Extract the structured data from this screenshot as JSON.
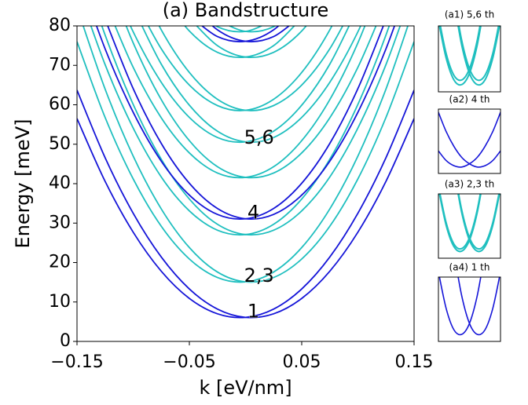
{
  "chart_data": [
    {
      "type": "line",
      "title": "(a) Bandstructure",
      "xlabel": "k [eV/nm]",
      "ylabel": "Energy [meV]",
      "x": [
        -0.15,
        -0.125,
        -0.1,
        -0.075,
        -0.05,
        -0.025,
        0,
        0.025,
        0.05,
        0.075,
        0.1,
        0.125,
        0.15
      ],
      "xlim": [
        -0.15,
        0.15
      ],
      "ylim": [
        0,
        80
      ],
      "xticks": [
        {
          "value": -0.15,
          "label": "−0.15"
        },
        {
          "value": -0.05,
          "label": "−0.05"
        },
        0.05,
        0.15
      ],
      "yticks": [
        0,
        10,
        20,
        30,
        40,
        50,
        60,
        70,
        80
      ],
      "series": [
        {
          "color": "#1515d8",
          "values": [
            63.7,
            46.6,
            32.5,
            21.4,
            13.3,
            8.2,
            6.1,
            7.0,
            10.9,
            17.8,
            27.7,
            40.6,
            56.5
          ]
        },
        {
          "color": "#1515d8",
          "values": [
            56.5,
            40.6,
            27.7,
            17.8,
            10.9,
            7.0,
            6.1,
            8.2,
            13.3,
            21.4,
            32.5,
            46.6,
            63.7
          ]
        },
        {
          "color": "#1fbfbf",
          "values": [
            84.7,
            64.0,
            47.0,
            33.6,
            23.8,
            17.6,
            15.1,
            16.2,
            20.9,
            29.2,
            41.2,
            56.8,
            76.0
          ]
        },
        {
          "color": "#1fbfbf",
          "values": [
            76.0,
            56.8,
            41.2,
            29.2,
            20.9,
            16.2,
            15.1,
            17.6,
            23.8,
            33.6,
            47.0,
            64.0,
            84.7
          ]
        },
        {
          "color": "#1fbfbf",
          "values": [
            99.1,
            77.7,
            60.1,
            46.2,
            36.1,
            29.7,
            27.1,
            28.2,
            33.1,
            41.7,
            54.1,
            70.2,
            90.1
          ]
        },
        {
          "color": "#1fbfbf",
          "values": [
            90.1,
            70.2,
            54.1,
            41.7,
            33.1,
            28.2,
            27.1,
            29.7,
            36.1,
            46.2,
            60.1,
            77.7,
            99.1
          ]
        },
        {
          "color": "#1515d8",
          "values": [
            null,
            81.7,
            64.1,
            50.2,
            40.1,
            33.7,
            31.1,
            32.2,
            37.1,
            45.7,
            58.1,
            74.2,
            94.1
          ]
        },
        {
          "color": "#1515d8",
          "values": [
            94.1,
            74.2,
            58.1,
            45.7,
            37.1,
            32.2,
            31.1,
            33.7,
            40.1,
            50.2,
            64.1,
            81.7,
            null
          ]
        },
        {
          "color": "#1fbfbf",
          "values": [
            null,
            93.9,
            75.7,
            61.3,
            50.9,
            44.3,
            41.6,
            42.7,
            47.8,
            56.7,
            69.5,
            86.1,
            null
          ]
        },
        {
          "color": "#1fbfbf",
          "values": [
            null,
            86.1,
            69.5,
            56.7,
            47.8,
            42.7,
            41.6,
            44.3,
            50.9,
            61.3,
            75.7,
            93.9,
            null
          ]
        },
        {
          "color": "#1fbfbf",
          "values": [
            null,
            null,
            84.7,
            70.3,
            59.9,
            53.3,
            50.6,
            51.7,
            56.8,
            65.7,
            78.5,
            95.1,
            null
          ]
        },
        {
          "color": "#1fbfbf",
          "values": [
            null,
            95.1,
            78.5,
            65.7,
            56.8,
            51.7,
            50.6,
            53.3,
            59.9,
            70.3,
            84.7,
            null,
            null
          ]
        },
        {
          "color": "#1fbfbf",
          "values": [
            null,
            null,
            93.8,
            79.0,
            68.2,
            61.4,
            58.6,
            59.8,
            65.0,
            74.2,
            87.4,
            null,
            null
          ]
        },
        {
          "color": "#1fbfbf",
          "values": [
            null,
            null,
            87.4,
            74.2,
            65.0,
            59.8,
            58.6,
            61.4,
            68.2,
            79.0,
            93.8,
            null,
            null
          ]
        },
        {
          "color": "#1fbfbf",
          "values": [
            null,
            null,
            null,
            null,
            82.0,
            75.0,
            72.1,
            73.3,
            78.7,
            88.2,
            null,
            null,
            null
          ]
        },
        {
          "color": "#1fbfbf",
          "values": [
            null,
            null,
            null,
            88.2,
            78.7,
            73.3,
            72.1,
            75.0,
            82.0,
            null,
            null,
            null,
            null
          ]
        },
        {
          "color": "#1515d8",
          "values": [
            null,
            null,
            null,
            null,
            86.0,
            79.0,
            76.1,
            77.3,
            82.7,
            null,
            null,
            null,
            null
          ]
        },
        {
          "color": "#1515d8",
          "values": [
            null,
            null,
            null,
            null,
            82.7,
            77.3,
            76.1,
            79.0,
            86.0,
            null,
            null,
            null,
            null
          ]
        },
        {
          "color": "#1fbfbf",
          "values": [
            null,
            null,
            null,
            null,
            null,
            81.5,
            78.6,
            79.8,
            85.2,
            null,
            null,
            null,
            null
          ]
        },
        {
          "color": "#1fbfbf",
          "values": [
            null,
            null,
            null,
            null,
            85.2,
            79.8,
            78.6,
            81.5,
            null,
            null,
            null,
            null,
            null
          ]
        }
      ],
      "annotations": [
        {
          "text": "1",
          "x": 0.007,
          "y": 7.5
        },
        {
          "text": "2,3",
          "x": 0.012,
          "y": 16.5
        },
        {
          "text": "4",
          "x": 0.007,
          "y": 32.5
        },
        {
          "text": "5,6",
          "x": 0.012,
          "y": 51.5
        }
      ]
    },
    {
      "type": "line",
      "title": "(a1) 5,6 th",
      "x": [
        -1,
        -0.75,
        -0.5,
        -0.25,
        0,
        0.25,
        0.5,
        0.75,
        1
      ],
      "xlim": [
        -1,
        1
      ],
      "ylim": [
        0,
        1
      ],
      "series": [
        {
          "color": "#1fbfbf",
          "values": [
            null,
            null,
            1.38,
            0.71,
            0.28,
            0.11,
            0.18,
            0.51,
            1.08
          ]
        },
        {
          "color": "#1fbfbf",
          "values": [
            1.08,
            0.51,
            0.18,
            0.11,
            0.28,
            0.71,
            1.38,
            null,
            null
          ]
        },
        {
          "color": "#1fbfbf",
          "values": [
            null,
            null,
            1.45,
            0.78,
            0.35,
            0.18,
            0.25,
            0.58,
            1.15
          ]
        },
        {
          "color": "#1fbfbf",
          "values": [
            1.15,
            0.58,
            0.25,
            0.18,
            0.35,
            0.78,
            1.45,
            null,
            null
          ]
        }
      ]
    },
    {
      "type": "line",
      "title": "(a2) 4 th",
      "x": [
        -1,
        -0.75,
        -0.5,
        -0.25,
        0,
        0.25,
        0.5,
        0.75,
        1
      ],
      "xlim": [
        -1,
        1
      ],
      "ylim": [
        0,
        1
      ],
      "series": [
        {
          "color": "#1515d8",
          "values": [
            0.95,
            0.65,
            0.42,
            0.25,
            0.15,
            0.1,
            0.12,
            0.2,
            0.35
          ]
        },
        {
          "color": "#1515d8",
          "values": [
            0.35,
            0.2,
            0.12,
            0.1,
            0.15,
            0.25,
            0.42,
            0.65,
            0.95
          ]
        }
      ]
    },
    {
      "type": "line",
      "title": "(a3) 2,3 th",
      "x": [
        -1,
        -0.75,
        -0.5,
        -0.25,
        0,
        0.25,
        0.5,
        0.75,
        1
      ],
      "xlim": [
        -1,
        1
      ],
      "ylim": [
        0,
        1
      ],
      "series": [
        {
          "color": "#1fbfbf",
          "values": [
            null,
            null,
            1.38,
            0.71,
            0.28,
            0.11,
            0.18,
            0.51,
            1.08
          ]
        },
        {
          "color": "#1fbfbf",
          "values": [
            1.08,
            0.51,
            0.18,
            0.11,
            0.28,
            0.71,
            1.38,
            null,
            null
          ]
        },
        {
          "color": "#1fbfbf",
          "values": [
            null,
            null,
            1.42,
            0.75,
            0.32,
            0.15,
            0.22,
            0.55,
            1.12
          ]
        },
        {
          "color": "#1fbfbf",
          "values": [
            1.12,
            0.55,
            0.22,
            0.15,
            0.32,
            0.75,
            1.42,
            null,
            null
          ]
        }
      ]
    },
    {
      "type": "line",
      "title": "(a4) 1 th",
      "x": [
        -1,
        -0.75,
        -0.5,
        -0.25,
        0,
        0.25,
        0.5,
        0.75,
        1
      ],
      "xlim": [
        -1,
        1
      ],
      "ylim": [
        0,
        1
      ],
      "series": [
        {
          "color": "#1515d8",
          "values": [
            null,
            null,
            1.38,
            0.71,
            0.28,
            0.11,
            0.18,
            0.51,
            1.08
          ]
        },
        {
          "color": "#1515d8",
          "values": [
            1.08,
            0.51,
            0.18,
            0.11,
            0.28,
            0.71,
            1.38,
            null,
            null
          ]
        }
      ]
    }
  ]
}
